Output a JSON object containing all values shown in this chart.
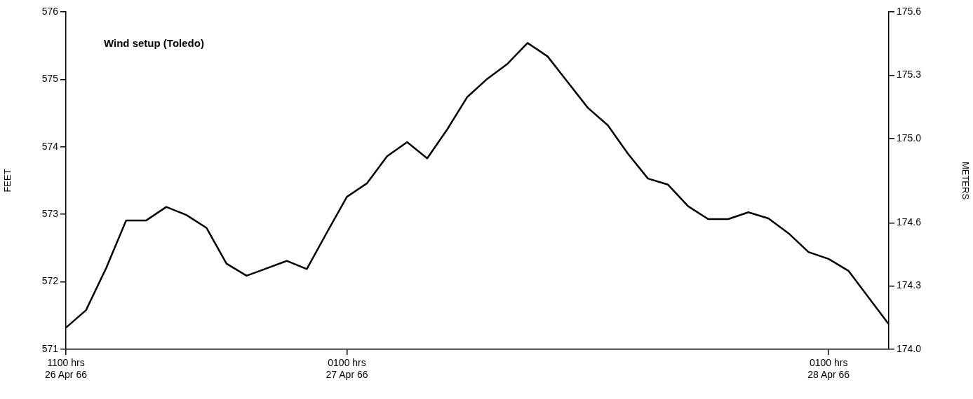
{
  "chart_data": {
    "type": "line",
    "annotations": [
      "Wind setup (Toledo)"
    ],
    "ylabel": "FEET",
    "y2label": "METERS",
    "x": [
      "1966-04-26T11:00",
      "1966-04-26T12:00",
      "1966-04-26T13:00",
      "1966-04-26T14:00",
      "1966-04-26T15:00",
      "1966-04-26T16:00",
      "1966-04-26T17:00",
      "1966-04-26T18:00",
      "1966-04-26T19:00",
      "1966-04-26T20:00",
      "1966-04-26T21:00",
      "1966-04-26T22:00",
      "1966-04-26T23:00",
      "1966-04-27T00:00",
      "1966-04-27T01:00",
      "1966-04-27T02:00",
      "1966-04-27T03:00",
      "1966-04-27T04:00",
      "1966-04-27T05:00",
      "1966-04-27T06:00",
      "1966-04-27T07:00",
      "1966-04-27T08:00",
      "1966-04-27T09:00",
      "1966-04-27T10:00",
      "1966-04-27T11:00",
      "1966-04-27T12:00",
      "1966-04-27T13:00",
      "1966-04-27T14:00",
      "1966-04-27T15:00",
      "1966-04-27T16:00",
      "1966-04-27T17:00",
      "1966-04-27T18:00",
      "1966-04-27T19:00",
      "1966-04-27T20:00",
      "1966-04-27T21:00",
      "1966-04-27T22:00",
      "1966-04-27T23:00",
      "1966-04-28T00:00",
      "1966-04-28T01:00",
      "1966-04-28T02:00",
      "1966-04-28T04:00"
    ],
    "series": [
      {
        "color": "#000000",
        "values": [
          571.32,
          571.58,
          572.2,
          572.91,
          572.91,
          573.11,
          572.99,
          572.8,
          572.27,
          572.09,
          572.2,
          572.31,
          572.19,
          572.73,
          573.26,
          573.46,
          573.86,
          574.07,
          573.83,
          574.26,
          574.74,
          575.01,
          575.23,
          575.54,
          575.34,
          574.96,
          574.58,
          574.32,
          573.9,
          573.53,
          573.44,
          573.12,
          572.93,
          572.93,
          573.03,
          572.94,
          572.72,
          572.44,
          572.34,
          572.16,
          571.37
        ]
      }
    ],
    "xlim": [
      "1966-04-26T11:00",
      "1966-04-28T04:00"
    ],
    "xticks": [
      {
        "value": "1966-04-26T11:00",
        "label": "1100 hrs\n26 Apr 66"
      },
      {
        "value": "1966-04-27T01:00",
        "label": "0100 hrs\n27 Apr 66"
      },
      {
        "value": "1966-04-28T01:00",
        "label": "0100 hrs\n28 Apr 66"
      }
    ],
    "ylim": [
      571,
      576
    ],
    "yticks": [
      571,
      572,
      573,
      574,
      575,
      576
    ],
    "y2lim": [
      174.0,
      175.6
    ],
    "y2ticks": [
      {
        "value": 174.0,
        "label": "174.0"
      },
      {
        "value": 174.3,
        "label": "174.3"
      },
      {
        "value": 174.6,
        "label": "174.6"
      },
      {
        "value": 175.0,
        "label": "175.0"
      },
      {
        "value": 175.3,
        "label": "175.3"
      },
      {
        "value": 175.6,
        "label": "175.6"
      }
    ],
    "grid": false,
    "legend": false,
    "marker": "none",
    "line_style": "solid"
  }
}
